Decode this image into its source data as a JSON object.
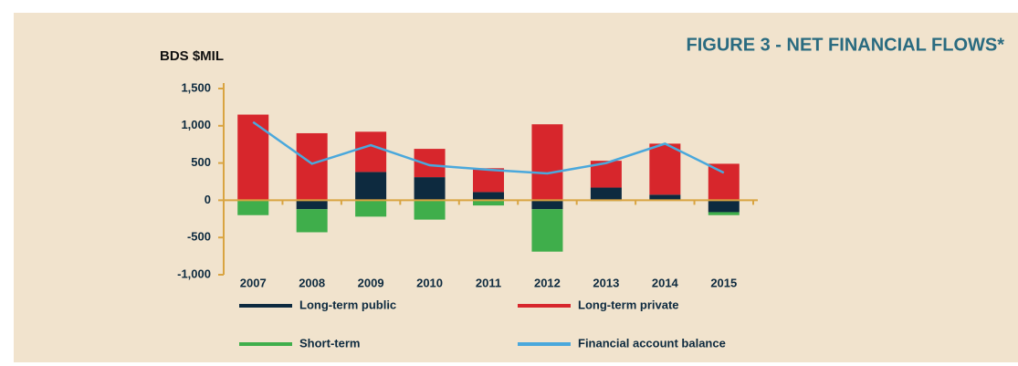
{
  "chart_data": {
    "type": "bar",
    "title": "FIGURE 3 - NET FINANCIAL FLOWS*",
    "y_label": "BDS $MIL",
    "categories": [
      "2007",
      "2008",
      "2009",
      "2010",
      "2011",
      "2012",
      "2013",
      "2014",
      "2015"
    ],
    "series": [
      {
        "name": "Long-term public",
        "color": "#0d2a3f",
        "values": [
          0,
          -120,
          380,
          310,
          110,
          -120,
          170,
          75,
          -160
        ]
      },
      {
        "name": "Long-term private",
        "color": "#d7262c",
        "values": [
          1150,
          900,
          540,
          380,
          320,
          1020,
          360,
          685,
          490
        ]
      },
      {
        "name": "Short-term",
        "color": "#3fae4b",
        "values": [
          -200,
          -310,
          -220,
          -260,
          -70,
          -570,
          -10,
          0,
          -40
        ]
      },
      {
        "name": "Financial account balance",
        "color": "#4aa8dc",
        "type": "line",
        "values": [
          1050,
          490,
          740,
          470,
          410,
          360,
          500,
          760,
          370
        ]
      }
    ],
    "ylim": [
      -1000,
      1500
    ],
    "yticks": [
      {
        "value": -1000,
        "label": "-1,000"
      },
      -500,
      0,
      500,
      {
        "value": 1000,
        "label": "1,000"
      },
      {
        "value": 1500,
        "label": "1,500"
      }
    ]
  }
}
